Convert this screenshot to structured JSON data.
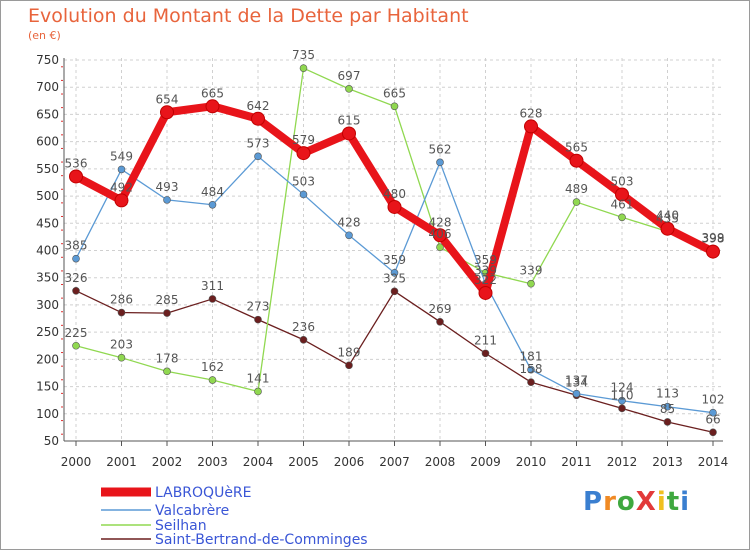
{
  "title": "Evolution du Montant de la Dette par Habitant",
  "subtitle": "(en €)",
  "logo": {
    "text": "ProXiti",
    "colors": [
      "#3a7fd0",
      "#f08a24",
      "#3fa83f",
      "#e23a3a",
      "#f0c020",
      "#3fa83f",
      "#3a7fd0"
    ]
  },
  "chart_data": {
    "type": "line",
    "x": [
      "2000",
      "2001",
      "2002",
      "2003",
      "2004",
      "2005",
      "2006",
      "2007",
      "2008",
      "2009",
      "2010",
      "2011",
      "2012",
      "2013",
      "2014"
    ],
    "ylim": [
      50,
      750
    ],
    "yticks": [
      50,
      100,
      150,
      200,
      250,
      300,
      350,
      400,
      450,
      500,
      550,
      600,
      650,
      700,
      750
    ],
    "grid": true,
    "legend_position": "bottom-left",
    "series": [
      {
        "name": "LABROQUèRE",
        "color": "#e8141a",
        "values": [
          536,
          492,
          654,
          665,
          642,
          579,
          615,
          480,
          428,
          322,
          628,
          565,
          503,
          440,
          398
        ]
      },
      {
        "name": "Valcabrère",
        "color": "#5b9ad5",
        "values": [
          385,
          549,
          493,
          484,
          573,
          503,
          428,
          359,
          562,
          339,
          181,
          137,
          124,
          113,
          102
        ]
      },
      {
        "name": "Seilhan",
        "color": "#90d850",
        "values": [
          225,
          203,
          178,
          162,
          141,
          735,
          697,
          665,
          406,
          359,
          339,
          489,
          461,
          435,
          399
        ]
      },
      {
        "name": "Saint-Bertrand-de-Comminges",
        "color": "#6b1f1f",
        "values": [
          326,
          286,
          285,
          311,
          273,
          236,
          189,
          325,
          269,
          211,
          158,
          134,
          110,
          85,
          66
        ]
      }
    ],
    "point_labels": [
      [
        "536",
        "492",
        "654",
        "665",
        "642",
        "579",
        "615",
        "480",
        "428",
        "322",
        "628",
        "565",
        "503",
        "440",
        "398"
      ],
      [
        "385",
        "549",
        "493",
        "484",
        "573",
        "503",
        "428",
        "359",
        "562",
        "339",
        "181",
        "137",
        "124",
        "113",
        "102"
      ],
      [
        "225",
        "203",
        "178",
        "162",
        "141",
        "735",
        "697",
        "665",
        "406",
        "359",
        "339",
        "489",
        "461",
        "435",
        "399"
      ],
      [
        "326",
        "286",
        "285",
        "311",
        "273",
        "236",
        "189",
        "325",
        "269",
        "211",
        "158",
        "134",
        "110",
        "85",
        "66"
      ]
    ]
  }
}
